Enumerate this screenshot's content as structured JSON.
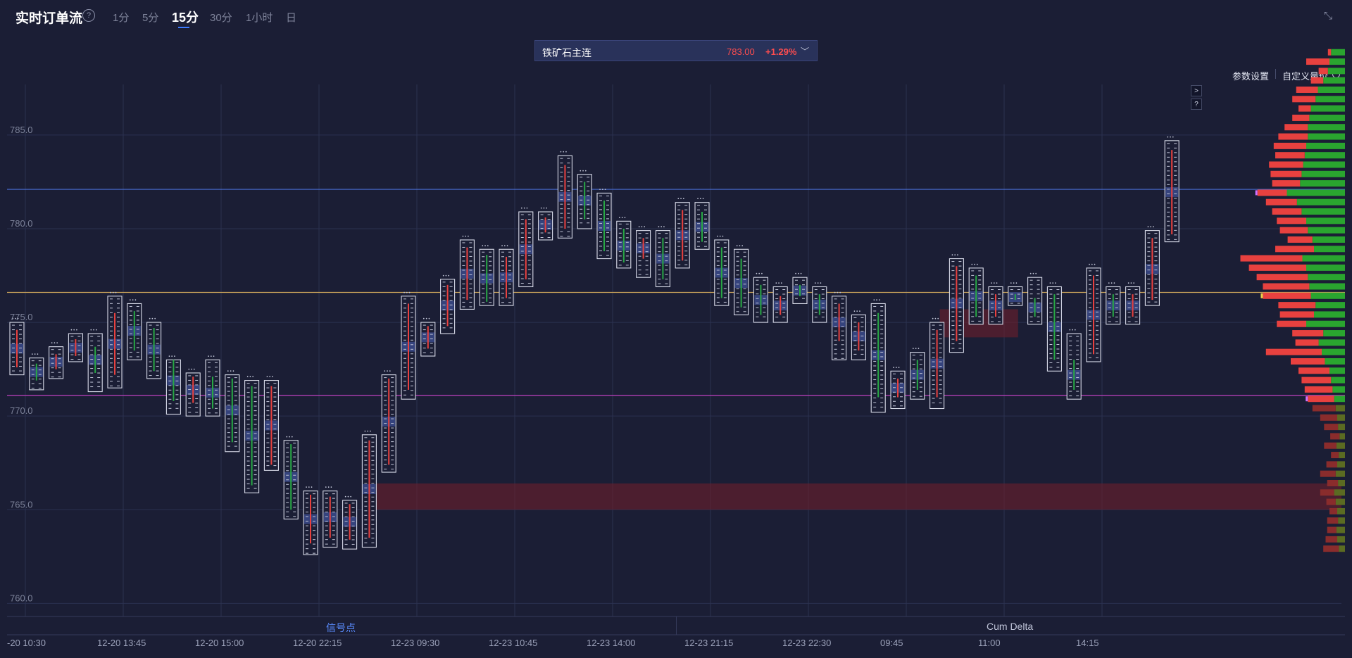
{
  "header": {
    "title": "实时订单流",
    "help": "?",
    "timeframes": [
      "1分",
      "5分",
      "15分",
      "30分",
      "1小时",
      "日"
    ],
    "active_timeframe": "15分"
  },
  "symbol": {
    "name": "铁矿石主连",
    "price": "783.00",
    "change": "+1.29%",
    "up_color": "#ff4d4f"
  },
  "toolbar": {
    "params_label": "参数设置",
    "custom_label": "自定义量价",
    "expand_label": ">",
    "help_label": "?"
  },
  "tabs": {
    "signal": "信号点",
    "cum_delta": "Cum Delta"
  },
  "icons": [
    "help-circle-icon",
    "collapse-icon",
    "chevron-down-icon",
    "settings-circle-icon"
  ],
  "chart_data": {
    "type": "footprint",
    "y_ticks": [
      "785.0",
      "780.0",
      "775.0",
      "770.0",
      "765.0",
      "760.0"
    ],
    "y_tick_values": [
      785,
      780,
      775,
      770,
      765,
      760
    ],
    "ylim": [
      759.3,
      787.7
    ],
    "x_tick_labels": [
      "-20 10:30",
      "12-20 13:45",
      "12-20 15:00",
      "12-20 22:15",
      "12-23 09:30",
      "12-23 10:45",
      "12-23 14:00",
      "12-23 21:15",
      "12-23 22:30",
      "09:45",
      "11:00",
      "14:15"
    ],
    "x_tick_index": [
      0,
      5,
      10,
      15,
      20,
      25,
      30,
      35,
      40,
      45,
      50,
      55
    ],
    "reference_lines": [
      {
        "value": 782.1,
        "color": "#4a6fd8"
      },
      {
        "value": 776.6,
        "color": "#c9a45a"
      },
      {
        "value": 771.1,
        "color": "#c040c0"
      }
    ],
    "bars": [
      {
        "high": 775.0,
        "low": 772.2,
        "open": 772.6,
        "close": 774.6
      },
      {
        "high": 773.1,
        "low": 771.4,
        "open": 772.8,
        "close": 771.9
      },
      {
        "high": 773.7,
        "low": 772.0,
        "open": 772.5,
        "close": 773.3
      },
      {
        "high": 774.4,
        "low": 772.9,
        "open": 773.2,
        "close": 774.1
      },
      {
        "high": 774.4,
        "low": 771.3,
        "open": 773.7,
        "close": 772.3
      },
      {
        "high": 776.4,
        "low": 771.5,
        "open": 772.2,
        "close": 775.5
      },
      {
        "high": 776.0,
        "low": 773.0,
        "open": 775.6,
        "close": 773.5
      },
      {
        "high": 775.0,
        "low": 772.0,
        "open": 774.7,
        "close": 772.4
      },
      {
        "high": 773.0,
        "low": 770.1,
        "open": 773.0,
        "close": 770.8
      },
      {
        "high": 772.3,
        "low": 770.0,
        "open": 770.7,
        "close": 772.1
      },
      {
        "high": 773.0,
        "low": 770.0,
        "open": 772.1,
        "close": 770.4
      },
      {
        "high": 772.2,
        "low": 768.1,
        "open": 772.0,
        "close": 768.6
      },
      {
        "high": 771.9,
        "low": 765.9,
        "open": 771.6,
        "close": 766.3
      },
      {
        "high": 771.9,
        "low": 767.1,
        "open": 767.4,
        "close": 771.6
      },
      {
        "high": 768.7,
        "low": 764.5,
        "open": 768.5,
        "close": 765.0
      },
      {
        "high": 766.0,
        "low": 762.6,
        "open": 763.2,
        "close": 765.8
      },
      {
        "high": 766.0,
        "low": 763.0,
        "open": 763.5,
        "close": 765.7
      },
      {
        "high": 765.5,
        "low": 762.9,
        "open": 763.4,
        "close": 765.3
      },
      {
        "high": 769.0,
        "low": 763.0,
        "open": 763.5,
        "close": 768.7
      },
      {
        "high": 772.2,
        "low": 767.0,
        "open": 767.4,
        "close": 772.0
      },
      {
        "high": 776.4,
        "low": 770.9,
        "open": 771.4,
        "close": 776.0
      },
      {
        "high": 775.0,
        "low": 773.2,
        "open": 773.6,
        "close": 774.8
      },
      {
        "high": 777.3,
        "low": 774.4,
        "open": 774.8,
        "close": 777.0
      },
      {
        "high": 779.4,
        "low": 775.7,
        "open": 776.2,
        "close": 779.0
      },
      {
        "high": 778.9,
        "low": 775.9,
        "open": 778.6,
        "close": 776.1
      },
      {
        "high": 778.9,
        "low": 775.9,
        "open": 776.3,
        "close": 778.5
      },
      {
        "high": 780.9,
        "low": 776.9,
        "open": 777.3,
        "close": 780.5
      },
      {
        "high": 780.9,
        "low": 779.4,
        "open": 779.8,
        "close": 780.6
      },
      {
        "high": 783.9,
        "low": 779.5,
        "open": 780.0,
        "close": 783.4
      },
      {
        "high": 782.9,
        "low": 780.0,
        "open": 782.5,
        "close": 780.5
      },
      {
        "high": 781.9,
        "low": 778.4,
        "open": 781.5,
        "close": 778.8
      },
      {
        "high": 780.4,
        "low": 777.9,
        "open": 780.0,
        "close": 778.2
      },
      {
        "high": 779.9,
        "low": 777.4,
        "open": 778.4,
        "close": 779.5
      },
      {
        "high": 779.9,
        "low": 776.9,
        "open": 779.5,
        "close": 777.3
      },
      {
        "high": 781.4,
        "low": 777.9,
        "open": 778.3,
        "close": 781.0
      },
      {
        "high": 781.4,
        "low": 778.9,
        "open": 780.9,
        "close": 779.3
      },
      {
        "high": 779.4,
        "low": 775.9,
        "open": 779.0,
        "close": 776.3
      },
      {
        "high": 778.9,
        "low": 775.4,
        "open": 778.4,
        "close": 775.8
      },
      {
        "high": 777.4,
        "low": 775.0,
        "open": 777.0,
        "close": 775.4
      },
      {
        "high": 776.9,
        "low": 775.0,
        "open": 775.4,
        "close": 776.4
      },
      {
        "high": 777.4,
        "low": 776.0,
        "open": 777.0,
        "close": 776.4
      },
      {
        "high": 776.9,
        "low": 775.0,
        "open": 776.5,
        "close": 775.4
      },
      {
        "high": 776.4,
        "low": 773.0,
        "open": 774.0,
        "close": 776.0
      },
      {
        "high": 775.4,
        "low": 773.0,
        "open": 773.5,
        "close": 775.0
      },
      {
        "high": 776.0,
        "low": 770.2,
        "open": 775.5,
        "close": 771.0
      },
      {
        "high": 772.4,
        "low": 770.4,
        "open": 771.0,
        "close": 772.0
      },
      {
        "high": 773.4,
        "low": 770.9,
        "open": 773.0,
        "close": 771.4
      },
      {
        "high": 775.0,
        "low": 770.4,
        "open": 771.0,
        "close": 774.6
      },
      {
        "high": 778.4,
        "low": 773.4,
        "open": 774.0,
        "close": 778.0
      },
      {
        "high": 777.9,
        "low": 774.9,
        "open": 777.5,
        "close": 775.3
      },
      {
        "high": 776.9,
        "low": 774.9,
        "open": 775.3,
        "close": 776.5
      },
      {
        "high": 776.9,
        "low": 775.9,
        "open": 776.5,
        "close": 776.2
      },
      {
        "high": 777.4,
        "low": 774.9,
        "open": 776.3,
        "close": 775.3
      },
      {
        "high": 776.9,
        "low": 772.4,
        "open": 776.5,
        "close": 773.0
      },
      {
        "high": 774.4,
        "low": 770.9,
        "open": 773.0,
        "close": 771.4
      },
      {
        "high": 777.9,
        "low": 772.9,
        "open": 773.3,
        "close": 777.5
      },
      {
        "high": 776.9,
        "low": 774.9,
        "open": 776.5,
        "close": 775.3
      },
      {
        "high": 776.9,
        "low": 774.9,
        "open": 775.3,
        "close": 776.5
      },
      {
        "high": 779.9,
        "low": 775.9,
        "open": 776.2,
        "close": 779.5
      },
      {
        "high": 784.7,
        "low": 779.3,
        "open": 779.7,
        "close": 784.2
      }
    ],
    "zones": [
      {
        "from": 765.0,
        "to": 766.4,
        "start_index": 18
      },
      {
        "from": 774.2,
        "to": 775.7,
        "start_index": 47,
        "end_index": 51
      }
    ],
    "volume_profile": {
      "price_start": 762.9,
      "price_step": 0.5,
      "buy": [
        8,
        10,
        11,
        9,
        10,
        12,
        14,
        9,
        12,
        10,
        8,
        11,
        7,
        9,
        10,
        12,
        14,
        16,
        18,
        20,
        26,
        30,
        34,
        28,
        50,
        40,
        38,
        44,
        46,
        48,
        50,
        55,
        40,
        42,
        48,
        50,
        56,
        62,
        75,
        58,
        56,
        54,
        52,
        50,
        48,
        48,
        46,
        44,
        38,
        35,
        28,
        22,
        20,
        18
      ],
      "sell": [
        20,
        15,
        12,
        14,
        10,
        12,
        18,
        14,
        20,
        14,
        10,
        16,
        12,
        18,
        22,
        30,
        34,
        36,
        38,
        40,
        44,
        72,
        30,
        40,
        38,
        44,
        48,
        62,
        60,
        66,
        74,
        80,
        50,
        32,
        36,
        38,
        38,
        40,
        38,
        36,
        40,
        44,
        38,
        42,
        38,
        30,
        22,
        16,
        30,
        28,
        16,
        12,
        30,
        4
      ]
    },
    "poc_price": 776.6,
    "highlight_prices": [
      771.1,
      782.1
    ]
  }
}
